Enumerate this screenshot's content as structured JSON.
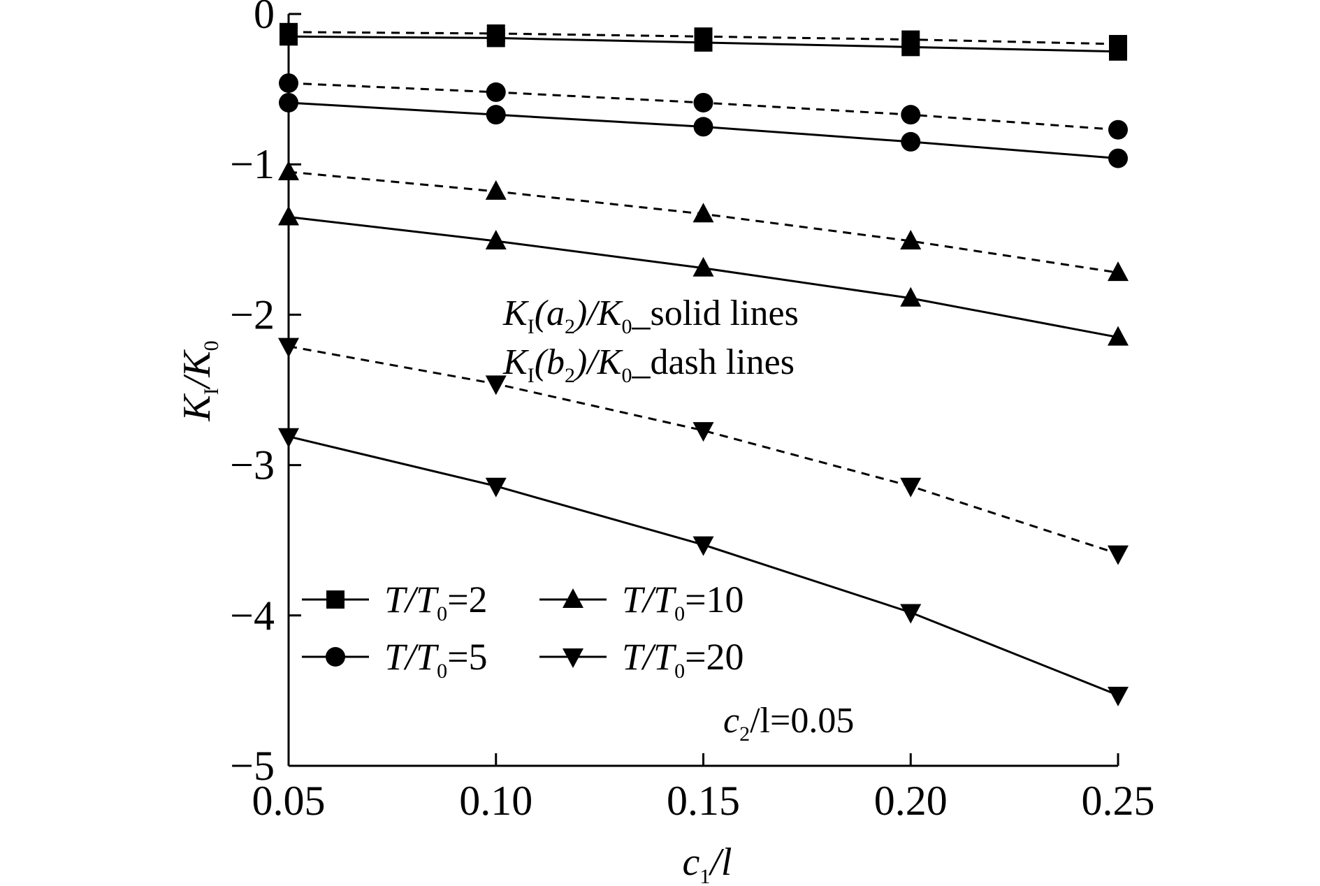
{
  "chart_data": {
    "type": "line",
    "xlabel": {
      "c": "c",
      "sub": "1",
      "rest": "/l"
    },
    "ylabel": {
      "k": "K",
      "sub1": "I",
      "mid": "/K",
      "sub2": "0"
    },
    "xlim": [
      0.05,
      0.25
    ],
    "ylim": [
      -5,
      0
    ],
    "x": [
      0.05,
      0.1,
      0.15,
      0.2,
      0.25
    ],
    "x_tick_labels": [
      "0.05",
      "0.10",
      "0.15",
      "0.20",
      "0.25"
    ],
    "y_ticks": [
      0,
      -1,
      -2,
      -3,
      -4,
      -5
    ],
    "y_tick_labels": [
      "0",
      "−1",
      "−2",
      "−3",
      "−4",
      "−5"
    ],
    "grid": false,
    "legend_position": "lower-left",
    "series": [
      {
        "marker": "square",
        "style": "solid",
        "values": [
          -0.15,
          -0.16,
          -0.19,
          -0.22,
          -0.25
        ]
      },
      {
        "marker": "square",
        "style": "dashed",
        "values": [
          -0.12,
          -0.13,
          -0.15,
          -0.17,
          -0.2
        ]
      },
      {
        "marker": "circle",
        "style": "solid",
        "values": [
          -0.59,
          -0.67,
          -0.75,
          -0.85,
          -0.96
        ]
      },
      {
        "marker": "circle",
        "style": "dashed",
        "values": [
          -0.46,
          -0.52,
          -0.59,
          -0.67,
          -0.77
        ]
      },
      {
        "marker": "triangle-up",
        "style": "solid",
        "values": [
          -1.35,
          -1.51,
          -1.69,
          -1.89,
          -2.15
        ]
      },
      {
        "marker": "triangle-up",
        "style": "dashed",
        "values": [
          -1.05,
          -1.18,
          -1.33,
          -1.51,
          -1.72
        ]
      },
      {
        "marker": "triangle-down",
        "style": "solid",
        "values": [
          -2.81,
          -3.14,
          -3.53,
          -3.98,
          -4.53
        ]
      },
      {
        "marker": "triangle-down",
        "style": "dashed",
        "values": [
          -2.21,
          -2.46,
          -2.77,
          -3.14,
          -3.59
        ]
      }
    ],
    "legend": [
      {
        "marker": "square",
        "t": "T/T",
        "sub": "0",
        "value": "=2"
      },
      {
        "marker": "triangle-up",
        "t": "T/T",
        "sub": "0",
        "value": "=10"
      },
      {
        "marker": "circle",
        "t": "T/T",
        "sub": "0",
        "value": "=5"
      },
      {
        "marker": "triangle-down",
        "t": "T/T",
        "sub": "0",
        "value": "=20"
      }
    ],
    "annotations": {
      "solid": {
        "k": "K",
        "sub1": "I",
        "paren": "(a",
        "sub2": "2",
        "mid": ")/K",
        "sub3": "0",
        "rest": "_solid lines"
      },
      "dash": {
        "k": "K",
        "sub1": "I",
        "paren": "(b",
        "sub2": "2",
        "mid": ")/K",
        "sub3": "0",
        "rest": "_dash lines"
      },
      "param": {
        "c": "c",
        "sub": "2",
        "rest": "/l=0.05"
      }
    }
  }
}
